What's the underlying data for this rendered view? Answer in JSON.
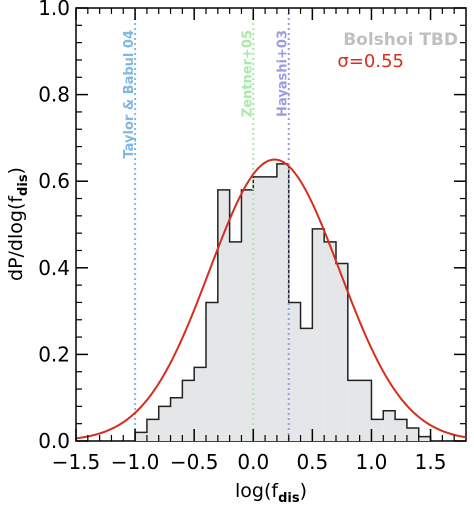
{
  "chart_data": {
    "type": "histogram",
    "xlabel": "log(f",
    "xlabel_sub": "dis",
    "xlabel_end": ")",
    "ylabel": "dP/dlog(f",
    "ylabel_sub": "dis",
    "ylabel_end": ")",
    "xlim": [
      -1.5,
      1.8
    ],
    "ylim": [
      0.0,
      1.0
    ],
    "x_ticks": [
      "-1.5",
      "-1.0",
      "-0.5",
      "0.0",
      "0.5",
      "1.0",
      "1.5"
    ],
    "y_ticks": [
      "0.0",
      "0.2",
      "0.4",
      "0.6",
      "0.8",
      "1.0"
    ],
    "histogram": {
      "name": "Bolshoi TBD",
      "color": "#c0c0c0",
      "fill": "#e4e6e7",
      "edge": "#222222",
      "bin_edges": [
        -1.0,
        -0.9,
        -0.8,
        -0.7,
        -0.6,
        -0.5,
        -0.4,
        -0.3,
        -0.2,
        -0.1,
        0.0,
        0.1,
        0.2,
        0.3,
        0.4,
        0.5,
        0.6,
        0.7,
        0.8,
        0.9,
        1.0,
        1.1,
        1.2,
        1.3,
        1.4,
        1.5
      ],
      "values": [
        0.02,
        0.05,
        0.08,
        0.1,
        0.14,
        0.17,
        0.32,
        0.58,
        0.46,
        0.58,
        0.61,
        0.61,
        0.64,
        0.32,
        0.26,
        0.49,
        0.46,
        0.41,
        0.14,
        0.14,
        0.05,
        0.07,
        0.05,
        0.03,
        0.01
      ]
    },
    "fit": {
      "name": "σ=0.55",
      "color": "#d42e1e",
      "mean": 0.18,
      "sigma": 0.55,
      "amplitude": 0.65
    },
    "reference_lines": [
      {
        "label": "Taylor & Babul 04",
        "x": -1.0,
        "color": "#80b8e0"
      },
      {
        "label": "Zentner+05",
        "x": 0.0,
        "color": "#a8eaa8"
      },
      {
        "label": "Hayashi+03",
        "x": 0.3,
        "color": "#9a9ce0"
      }
    ],
    "legend_placement": "top-right"
  }
}
